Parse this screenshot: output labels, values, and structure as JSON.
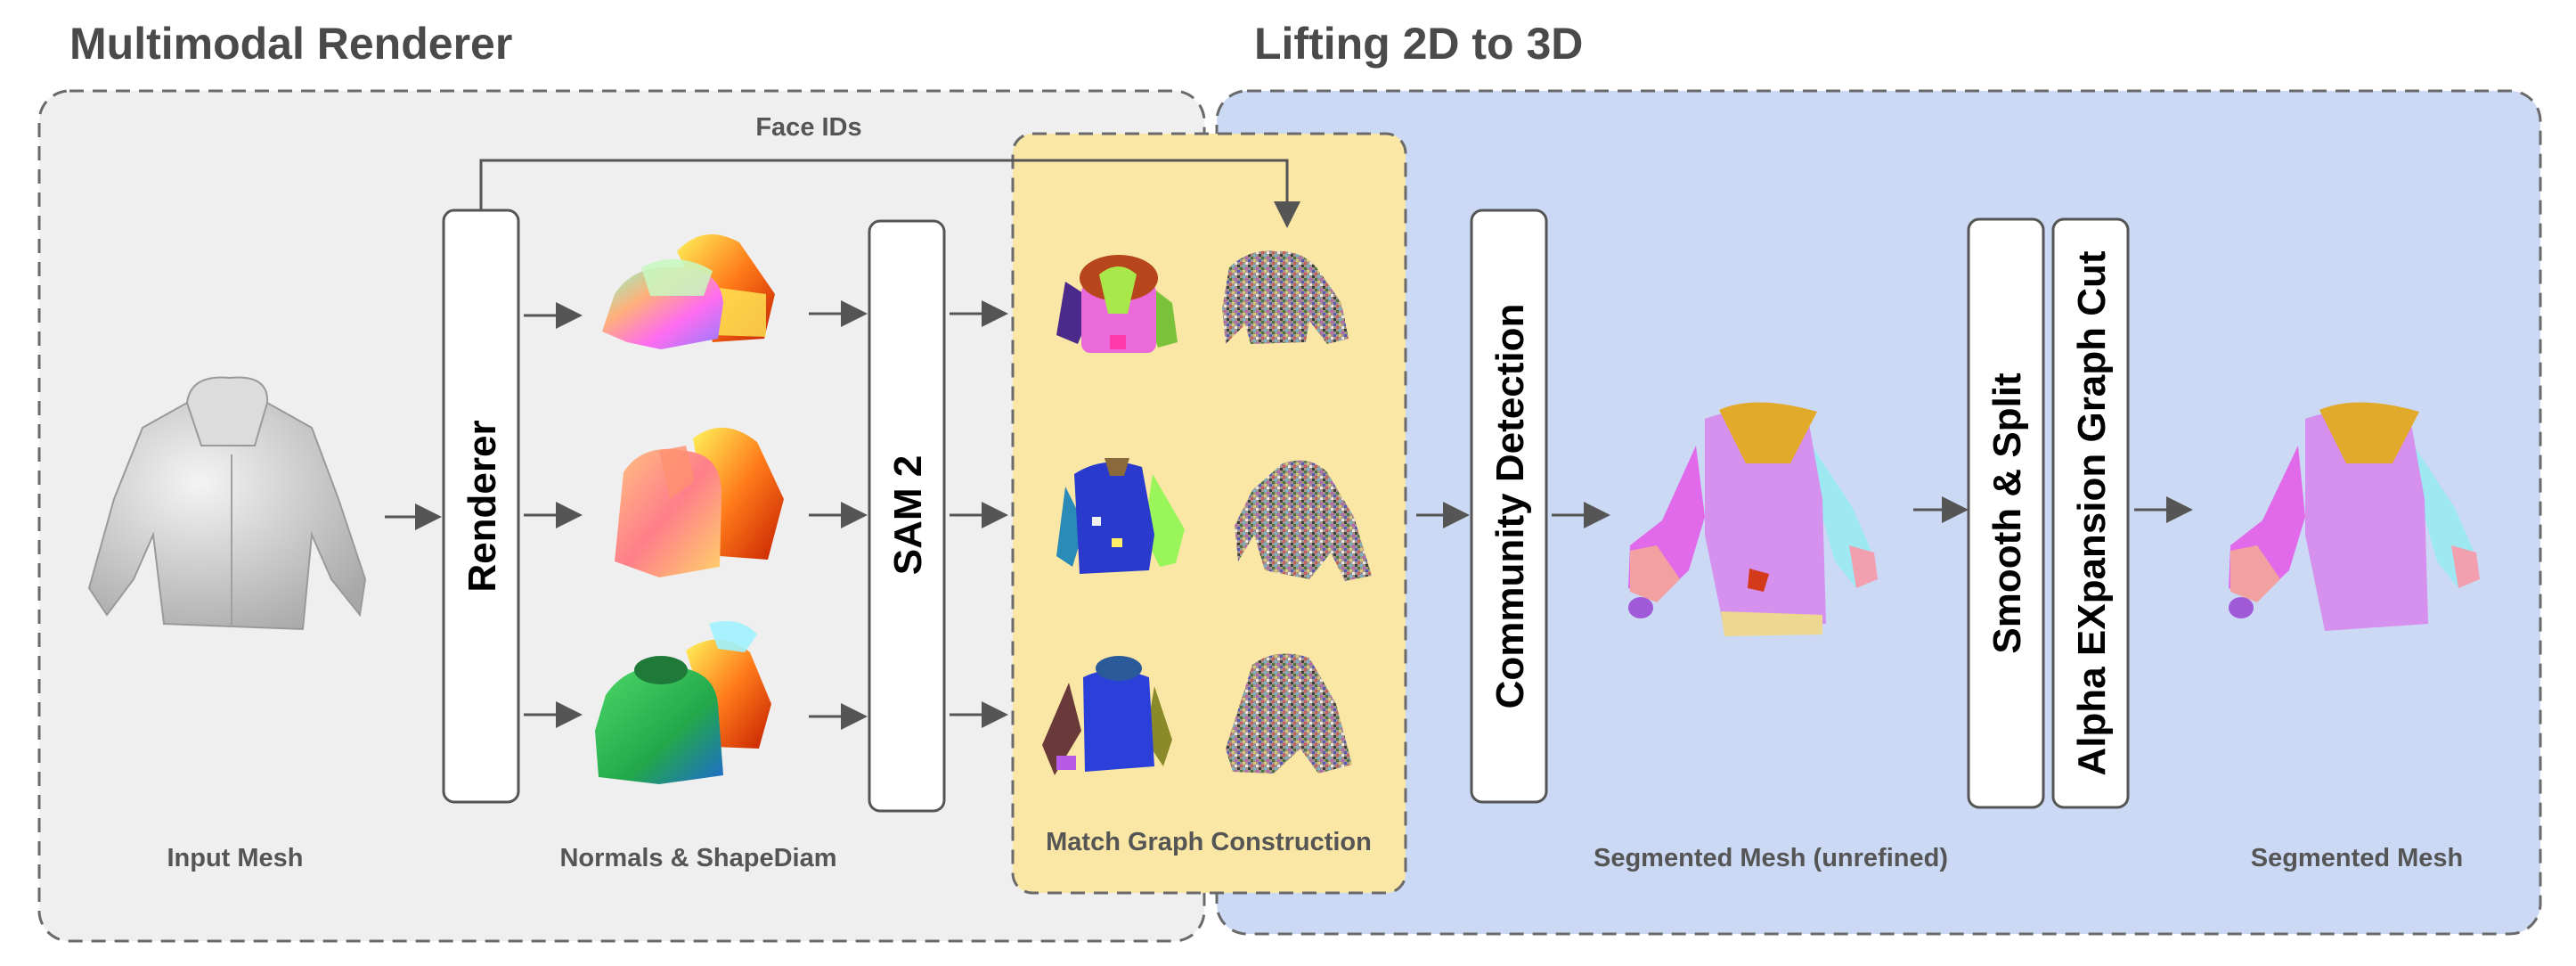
{
  "sections": {
    "renderer_title": "Multimodal Renderer",
    "lifting_title": "Lifting 2D to 3D"
  },
  "labels": {
    "face_ids": "Face IDs",
    "input_mesh": "Input Mesh",
    "normals": "Normals & ShapeDiam",
    "match_graph": "Match Graph Construction",
    "segmented_unrefined": "Segmented Mesh (unrefined)",
    "segmented": "Segmented Mesh"
  },
  "boxes": {
    "renderer": "Renderer",
    "sam2": "SAM 2",
    "community": "Community Detection",
    "smooth_split": "Smooth & Split",
    "alpha_expansion": "Alpha EXpansion Graph Cut"
  },
  "colors": {
    "renderer_panel": "#efefef",
    "lifting_panel": "#ccd9f5",
    "match_panel": "#fae7a5",
    "box_stroke": "#555555",
    "arrow": "#555555"
  },
  "icons": {
    "input_mesh": "gray-hoodie-3d-icon",
    "renders": "rainbow-hoodie-render-icon",
    "sam_masks": "segmented-hoodie-mask-icon",
    "face_id_noise": "noisy-hoodie-icon",
    "segmented_mesh": "pastel-segmented-hoodie-icon"
  }
}
